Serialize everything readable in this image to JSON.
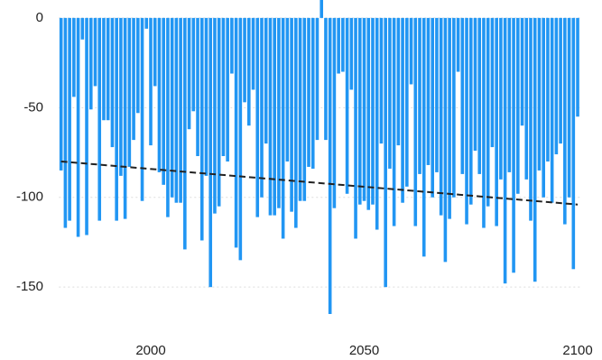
{
  "chart_data": {
    "type": "bar",
    "x": [
      1979,
      1980,
      1981,
      1982,
      1983,
      1984,
      1985,
      1986,
      1987,
      1988,
      1989,
      1990,
      1991,
      1992,
      1993,
      1994,
      1995,
      1996,
      1997,
      1998,
      1999,
      2000,
      2001,
      2002,
      2003,
      2004,
      2005,
      2006,
      2007,
      2008,
      2009,
      2010,
      2011,
      2012,
      2013,
      2014,
      2015,
      2016,
      2017,
      2018,
      2019,
      2020,
      2021,
      2022,
      2023,
      2024,
      2025,
      2026,
      2027,
      2028,
      2029,
      2030,
      2031,
      2032,
      2033,
      2034,
      2035,
      2036,
      2037,
      2038,
      2039,
      2040,
      2041,
      2042,
      2043,
      2044,
      2045,
      2046,
      2047,
      2048,
      2049,
      2050,
      2051,
      2052,
      2053,
      2054,
      2055,
      2056,
      2057,
      2058,
      2059,
      2060,
      2061,
      2062,
      2063,
      2064,
      2065,
      2066,
      2067,
      2068,
      2069,
      2070,
      2071,
      2072,
      2073,
      2074,
      2075,
      2076,
      2077,
      2078,
      2079,
      2080,
      2081,
      2082,
      2083,
      2084,
      2085,
      2086,
      2087,
      2088,
      2089,
      2090,
      2091,
      2092,
      2093,
      2094,
      2095,
      2096,
      2097,
      2098,
      2099,
      2100
    ],
    "values": [
      -85,
      -117,
      -113,
      -44,
      -122,
      -12,
      -121,
      -51,
      -38,
      -113,
      -57,
      -57,
      -72,
      -113,
      -88,
      -112,
      -83,
      -68,
      -53,
      -102,
      -6,
      -71,
      -38,
      -86,
      -93,
      -111,
      -100,
      -103,
      -103,
      -129,
      -62,
      -52,
      -77,
      -124,
      -88,
      -150,
      -109,
      -105,
      -77,
      -80,
      -31,
      -128,
      -135,
      -47,
      -60,
      -40,
      -111,
      -100,
      -70,
      -110,
      -110,
      -106,
      -123,
      -80,
      -108,
      -117,
      -102,
      -102,
      -83,
      -84,
      -68,
      10,
      -68,
      -165,
      -106,
      -31,
      -30,
      -98,
      -40,
      -123,
      -104,
      -102,
      -107,
      -104,
      -118,
      -70,
      -150,
      -84,
      -116,
      -71,
      -103,
      -94,
      -37,
      -116,
      -87,
      -133,
      -82,
      -100,
      -86,
      -110,
      -136,
      -112,
      -100,
      -30,
      -87,
      -115,
      -104,
      -74,
      -87,
      -117,
      -105,
      -72,
      -116,
      -90,
      -148,
      -86,
      -142,
      -98,
      -60,
      -90,
      -113,
      -147,
      -85,
      -100,
      -80,
      -103,
      -76,
      -70,
      -115,
      -100,
      -140,
      -55
    ],
    "color": "#2196f3",
    "trend": {
      "x": [
        1979,
        2100
      ],
      "values": [
        -80,
        -104
      ],
      "color": "#222222"
    },
    "xlim": [
      1978.5,
      2100.5
    ],
    "xticks": [
      2000,
      2050,
      2100
    ],
    "ylim": [
      -166,
      10
    ],
    "yticks": [
      0,
      -50,
      -100,
      -150
    ],
    "grid": true
  }
}
